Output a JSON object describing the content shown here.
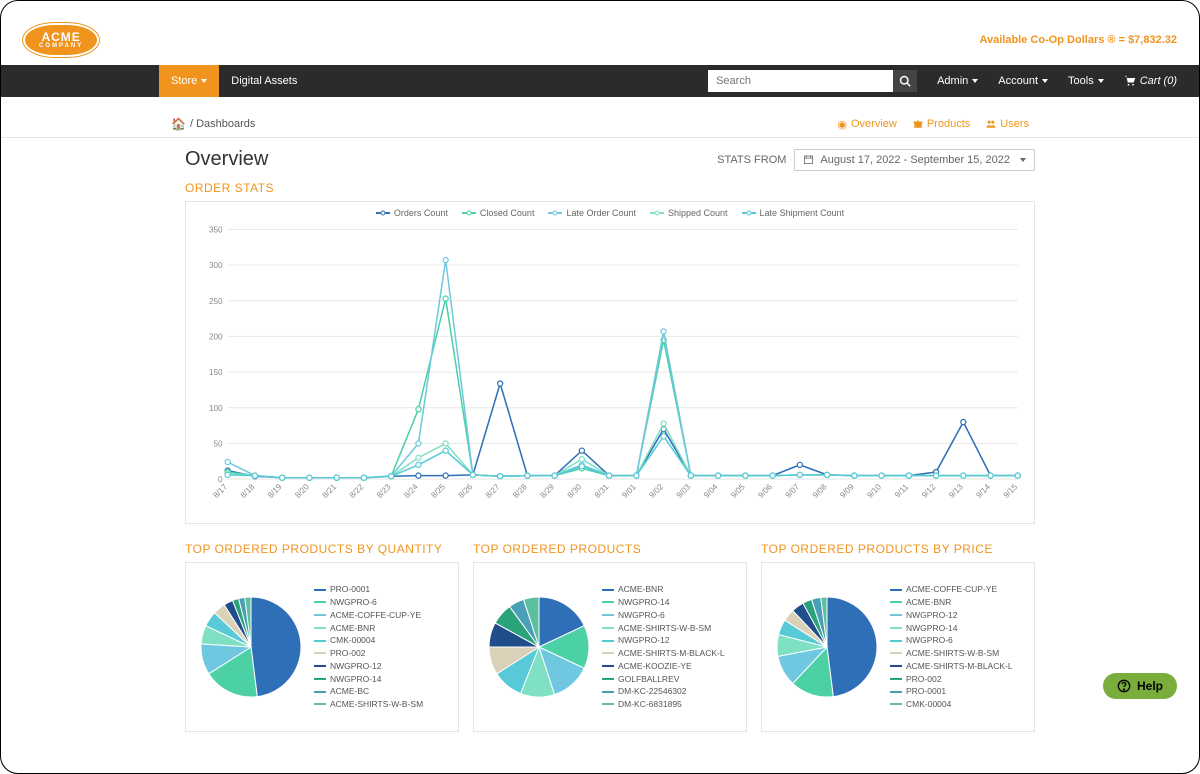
{
  "header": {
    "logo_text": "ACME",
    "logo_sub": "COMPANY",
    "coop_label": "Available Co-Op Dollars ® = ",
    "coop_value": "$7,832.32"
  },
  "nav": {
    "store": "Store",
    "digital_assets": "Digital Assets",
    "search_placeholder": "Search",
    "admin": "Admin",
    "account": "Account",
    "tools": "Tools",
    "cart": "Cart (0)"
  },
  "breadcrumb": {
    "home_icon": "⌂",
    "dashboards": "/ Dashboards",
    "tabs": {
      "overview": "Overview",
      "products": "Products",
      "users": "Users"
    }
  },
  "page": {
    "title": "Overview",
    "stats_from_label": "STATS FROM",
    "date_range": "August 17, 2022 - September 15, 2022"
  },
  "order_stats": {
    "title": "ORDER STATS",
    "type": "line",
    "series": [
      {
        "name": "Orders Count",
        "color": "#2f6fb7"
      },
      {
        "name": "Closed Count",
        "color": "#4cd0a6"
      },
      {
        "name": "Late Order Count",
        "color": "#6fc8e0"
      },
      {
        "name": "Shipped Count",
        "color": "#7fe0c4"
      },
      {
        "name": "Late Shipment Count",
        "color": "#58c9d6"
      }
    ],
    "x_labels": [
      "8/17",
      "8/18",
      "8/19",
      "8/20",
      "8/21",
      "8/22",
      "8/23",
      "8/24",
      "8/25",
      "8/26",
      "8/27",
      "8/28",
      "8/29",
      "8/30",
      "8/31",
      "9/01",
      "9/02",
      "9/03",
      "9/04",
      "9/05",
      "9/06",
      "9/07",
      "9/08",
      "9/09",
      "9/10",
      "9/11",
      "9/12",
      "9/13",
      "9/14",
      "9/15"
    ],
    "ylim": [
      0,
      350
    ],
    "ytick_step": 50,
    "grid_color": "#e8e8e8",
    "background_color": "#ffffff",
    "data": {
      "orders": [
        12,
        4,
        2,
        2,
        2,
        2,
        4,
        5,
        5,
        6,
        134,
        5,
        5,
        40,
        5,
        5,
        70,
        5,
        5,
        5,
        5,
        20,
        6,
        5,
        5,
        5,
        10,
        80,
        5,
        5
      ],
      "closed": [
        10,
        5,
        2,
        2,
        2,
        2,
        4,
        98,
        253,
        6,
        4,
        5,
        5,
        15,
        5,
        5,
        195,
        5,
        5,
        5,
        5,
        6,
        6,
        5,
        5,
        5,
        5,
        5,
        5,
        5
      ],
      "late_order": [
        24,
        5,
        2,
        2,
        2,
        2,
        4,
        50,
        307,
        6,
        4,
        5,
        5,
        20,
        5,
        5,
        207,
        5,
        5,
        5,
        5,
        6,
        6,
        5,
        5,
        5,
        5,
        5,
        5,
        5
      ],
      "shipped": [
        8,
        5,
        2,
        2,
        2,
        2,
        4,
        30,
        50,
        6,
        4,
        5,
        5,
        28,
        5,
        5,
        78,
        5,
        5,
        5,
        5,
        6,
        6,
        5,
        5,
        5,
        5,
        5,
        5,
        5
      ],
      "late_shipment": [
        6,
        5,
        2,
        2,
        2,
        2,
        4,
        20,
        40,
        6,
        4,
        5,
        5,
        18,
        5,
        5,
        60,
        5,
        5,
        5,
        5,
        6,
        6,
        5,
        5,
        5,
        5,
        5,
        5,
        5
      ]
    }
  },
  "pies": [
    {
      "title": "TOP ORDERED PRODUCTS BY QUANTITY",
      "items": [
        {
          "label": "PRO-0001",
          "value": 48,
          "color": "#2f6fb7"
        },
        {
          "label": "NWGPRO-6",
          "value": 18,
          "color": "#4cd0a6"
        },
        {
          "label": "ACME-COFFE-CUP-YE",
          "value": 10,
          "color": "#6fc8e0"
        },
        {
          "label": "ACME-BNR",
          "value": 6,
          "color": "#7fe0c4"
        },
        {
          "label": "CMK-00004",
          "value": 5,
          "color": "#58c9d6"
        },
        {
          "label": "PRO-002",
          "value": 4,
          "color": "#d9d2b8"
        },
        {
          "label": "NWGPRO-12",
          "value": 3,
          "color": "#1f4e8a"
        },
        {
          "label": "NWGPRO-14",
          "value": 2,
          "color": "#2aa37b"
        },
        {
          "label": "ACME-BC",
          "value": 2,
          "color": "#4a9fb8"
        },
        {
          "label": "ACME-SHIRTS-W-B-SM",
          "value": 2,
          "color": "#5cc0a0"
        }
      ]
    },
    {
      "title": "TOP ORDERED PRODUCTS",
      "items": [
        {
          "label": "ACME-BNR",
          "value": 18,
          "color": "#2f6fb7"
        },
        {
          "label": "NWGPRO-14",
          "value": 14,
          "color": "#4cd0a6"
        },
        {
          "label": "NWGPRO-6",
          "value": 13,
          "color": "#6fc8e0"
        },
        {
          "label": "ACME-SHIRTS-W-B-SM",
          "value": 11,
          "color": "#7fe0c4"
        },
        {
          "label": "NWGPRO-12",
          "value": 10,
          "color": "#58c9d6"
        },
        {
          "label": "ACME-SHIRTS-M-BLACK-L",
          "value": 9,
          "color": "#d9d2b8"
        },
        {
          "label": "ACME-KOOZIE-YE",
          "value": 8,
          "color": "#1f4e8a"
        },
        {
          "label": "GOLFBALLREV",
          "value": 7,
          "color": "#2aa37b"
        },
        {
          "label": "DM-KC-22546302",
          "value": 5,
          "color": "#4a9fb8"
        },
        {
          "label": "DM-KC-6831895",
          "value": 5,
          "color": "#5cc0a0"
        }
      ]
    },
    {
      "title": "TOP ORDERED PRODUCTS BY PRICE",
      "items": [
        {
          "label": "ACME-COFFE-CUP-YE",
          "value": 48,
          "color": "#2f6fb7"
        },
        {
          "label": "ACME-BNR",
          "value": 14,
          "color": "#4cd0a6"
        },
        {
          "label": "NWGPRO-12",
          "value": 10,
          "color": "#6fc8e0"
        },
        {
          "label": "NWGPRO-14",
          "value": 7,
          "color": "#7fe0c4"
        },
        {
          "label": "NWGPRO-6",
          "value": 5,
          "color": "#58c9d6"
        },
        {
          "label": "ACME-SHIRTS-W-B-SM",
          "value": 4,
          "color": "#d9d2b8"
        },
        {
          "label": "ACME-SHIRTS-M-BLACK-L",
          "value": 4,
          "color": "#1f4e8a"
        },
        {
          "label": "PRO-002",
          "value": 3,
          "color": "#2aa37b"
        },
        {
          "label": "PRO-0001",
          "value": 3,
          "color": "#4a9fb8"
        },
        {
          "label": "CMK-00004",
          "value": 2,
          "color": "#5cc0a0"
        }
      ]
    }
  ],
  "help": "Help"
}
